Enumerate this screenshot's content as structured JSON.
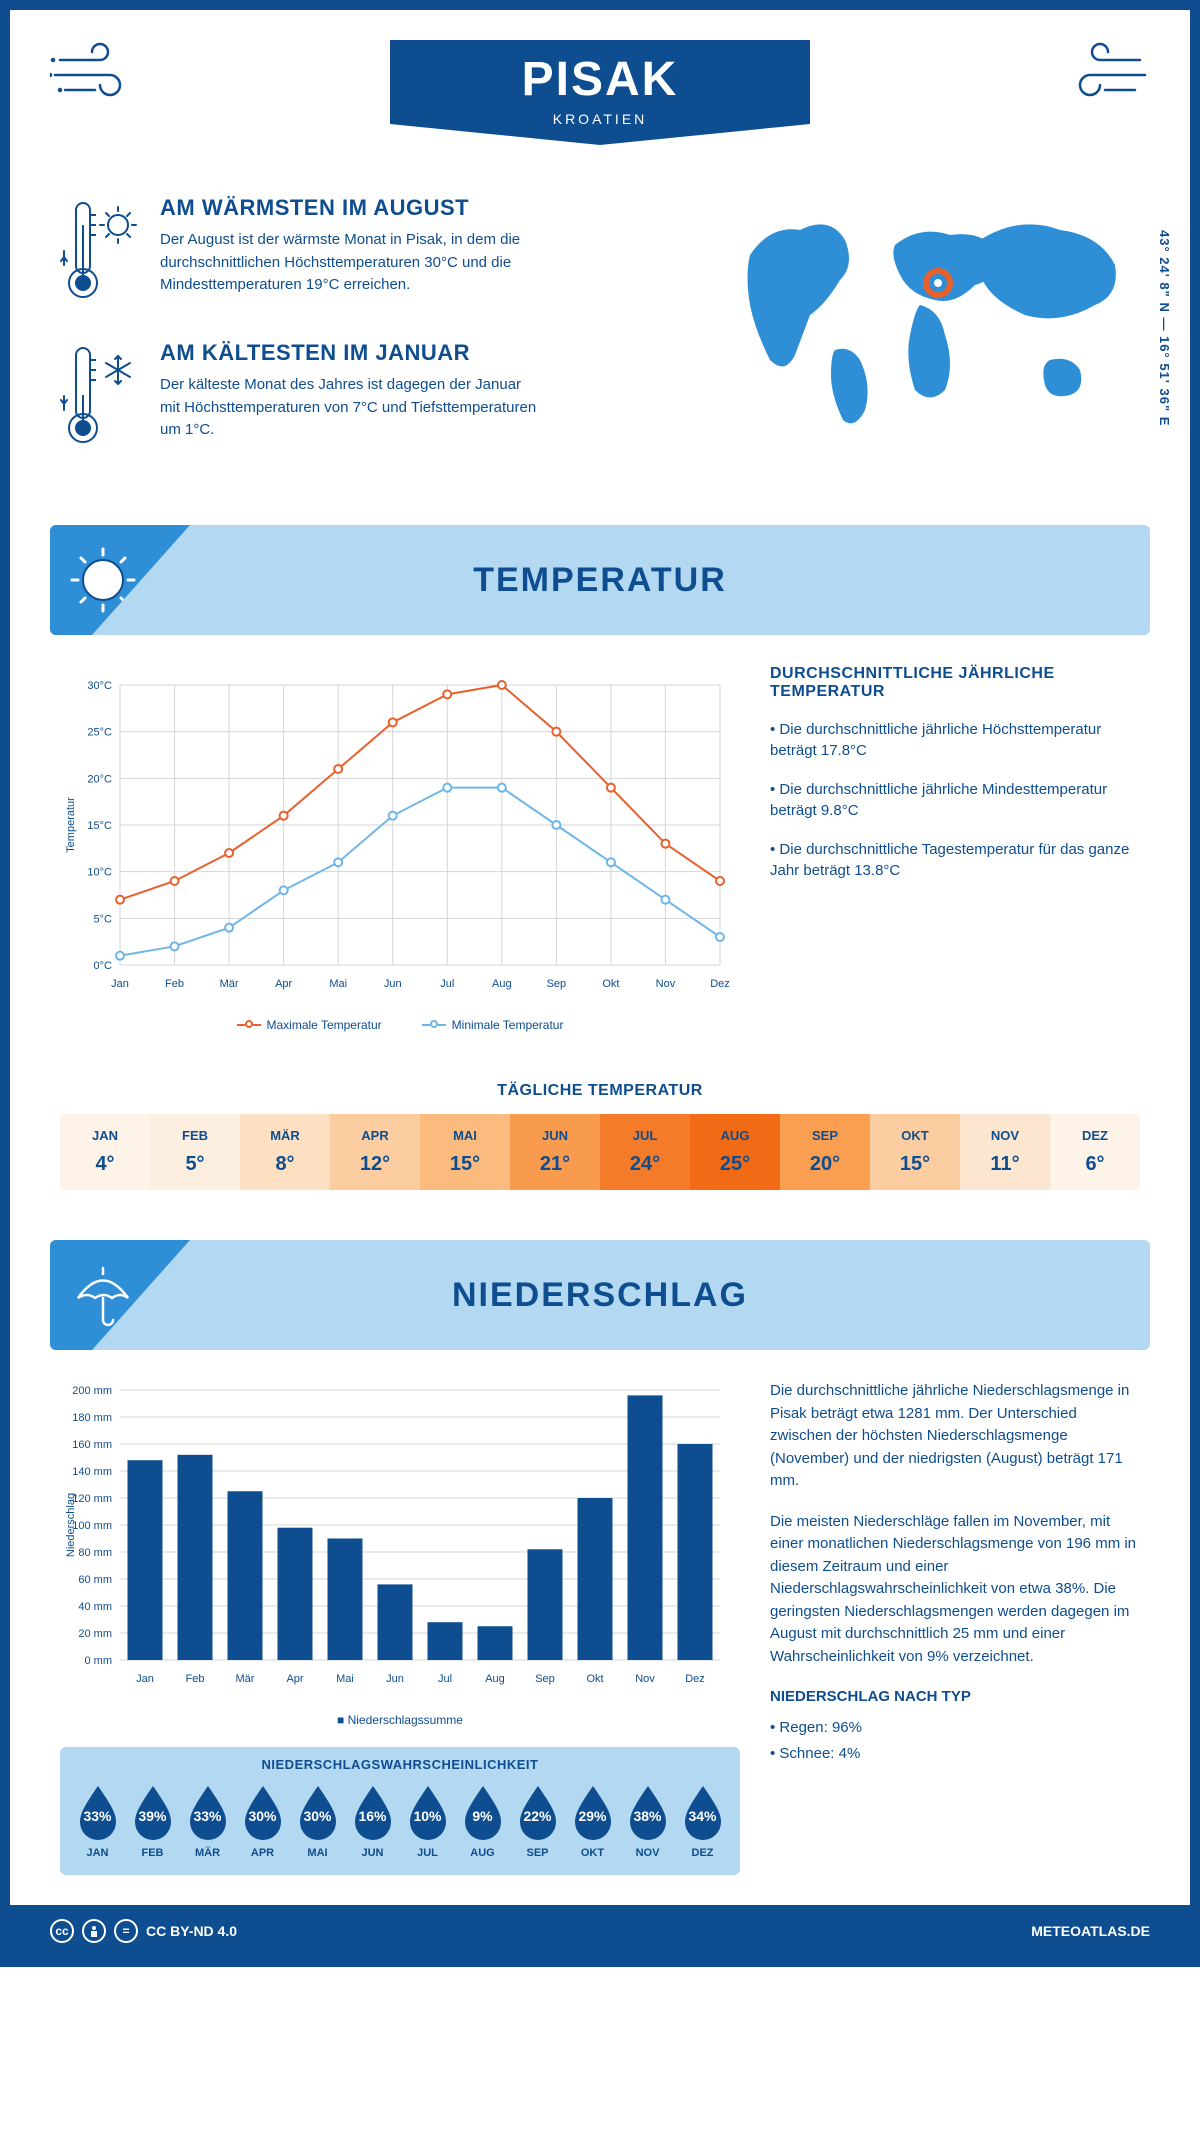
{
  "header": {
    "title": "PISAK",
    "country": "KROATIEN"
  },
  "coords": "43° 24' 8\" N — 16° 51' 36\" E",
  "colors": {
    "primary": "#0e4d8f",
    "accent": "#2e8ed6",
    "light": "#b3d8f2",
    "orange": "#e8602c",
    "blue_line": "#6fb6e8"
  },
  "facts": {
    "warm": {
      "title": "AM WÄRMSTEN IM AUGUST",
      "text": "Der August ist der wärmste Monat in Pisak, in dem die durchschnittlichen Höchsttemperaturen 30°C und die Mindesttemperaturen 19°C erreichen."
    },
    "cold": {
      "title": "AM KÄLTESTEN IM JANUAR",
      "text": "Der kälteste Monat des Jahres ist dagegen der Januar mit Höchsttemperaturen von 7°C und Tiefsttemperaturen um 1°C."
    }
  },
  "sections": {
    "temp": "TEMPERATUR",
    "precip": "NIEDERSCHLAG"
  },
  "temp_chart": {
    "type": "line",
    "months": [
      "Jan",
      "Feb",
      "Mär",
      "Apr",
      "Mai",
      "Jun",
      "Jul",
      "Aug",
      "Sep",
      "Okt",
      "Nov",
      "Dez"
    ],
    "max": [
      7,
      9,
      12,
      16,
      21,
      26,
      29,
      30,
      25,
      19,
      13,
      9
    ],
    "min": [
      1,
      2,
      4,
      8,
      11,
      16,
      19,
      19,
      15,
      11,
      7,
      3
    ],
    "ylim": [
      0,
      30
    ],
    "ytick_step": 5,
    "ylabel": "Temperatur",
    "max_color": "#e8602c",
    "min_color": "#6fb6e8",
    "legend_max": "Maximale Temperatur",
    "legend_min": "Minimale Temperatur",
    "grid_color": "#d5d5d5",
    "line_width": 2,
    "marker_r": 4
  },
  "temp_side": {
    "title": "DURCHSCHNITTLICHE JÄHRLICHE TEMPERATUR",
    "b1": "• Die durchschnittliche jährliche Höchsttemperatur beträgt 17.8°C",
    "b2": "• Die durchschnittliche jährliche Mindesttemperatur beträgt 9.8°C",
    "b3": "• Die durchschnittliche Tagestemperatur für das ganze Jahr beträgt 13.8°C"
  },
  "daily": {
    "title": "TÄGLICHE TEMPERATUR",
    "months": [
      "JAN",
      "FEB",
      "MÄR",
      "APR",
      "MAI",
      "JUN",
      "JUL",
      "AUG",
      "SEP",
      "OKT",
      "NOV",
      "DEZ"
    ],
    "values": [
      "4°",
      "5°",
      "8°",
      "12°",
      "15°",
      "21°",
      "24°",
      "25°",
      "20°",
      "15°",
      "11°",
      "6°"
    ],
    "colors": [
      "#fdf3e8",
      "#fdefdf",
      "#fde0c2",
      "#fccda0",
      "#fbbb7f",
      "#f89b4e",
      "#f47b2a",
      "#f16a16",
      "#fa9e52",
      "#fccda0",
      "#fde6cf",
      "#fdf3e8"
    ]
  },
  "precip_chart": {
    "type": "bar",
    "months": [
      "Jan",
      "Feb",
      "Mär",
      "Apr",
      "Mai",
      "Jun",
      "Jul",
      "Aug",
      "Sep",
      "Okt",
      "Nov",
      "Dez"
    ],
    "values": [
      148,
      152,
      125,
      98,
      90,
      56,
      28,
      25,
      82,
      120,
      196,
      160
    ],
    "ylim": [
      0,
      200
    ],
    "ytick_step": 20,
    "ylabel": "Niederschlag",
    "bar_color": "#0e4d8f",
    "grid_color": "#d5d5d5",
    "legend": "Niederschlagssumme"
  },
  "precip_side": {
    "p1": "Die durchschnittliche jährliche Niederschlagsmenge in Pisak beträgt etwa 1281 mm. Der Unterschied zwischen der höchsten Niederschlagsmenge (November) und der niedrigsten (August) beträgt 171 mm.",
    "p2": "Die meisten Niederschläge fallen im November, mit einer monatlichen Niederschlagsmenge von 196 mm in diesem Zeitraum und einer Niederschlagswahrscheinlichkeit von etwa 38%. Die geringsten Niederschlagsmengen werden dagegen im August mit durchschnittlich 25 mm und einer Wahrscheinlichkeit von 9% verzeichnet.",
    "type_title": "NIEDERSCHLAG NACH TYP",
    "rain": "• Regen: 96%",
    "snow": "• Schnee: 4%"
  },
  "prob": {
    "title": "NIEDERSCHLAGSWAHRSCHEINLICHKEIT",
    "months": [
      "JAN",
      "FEB",
      "MÄR",
      "APR",
      "MAI",
      "JUN",
      "JUL",
      "AUG",
      "SEP",
      "OKT",
      "NOV",
      "DEZ"
    ],
    "values": [
      "33%",
      "39%",
      "33%",
      "30%",
      "30%",
      "16%",
      "10%",
      "9%",
      "22%",
      "29%",
      "38%",
      "34%"
    ],
    "fill": "#0e4d8f"
  },
  "footer": {
    "license": "CC BY-ND 4.0",
    "site": "METEOATLAS.DE"
  }
}
